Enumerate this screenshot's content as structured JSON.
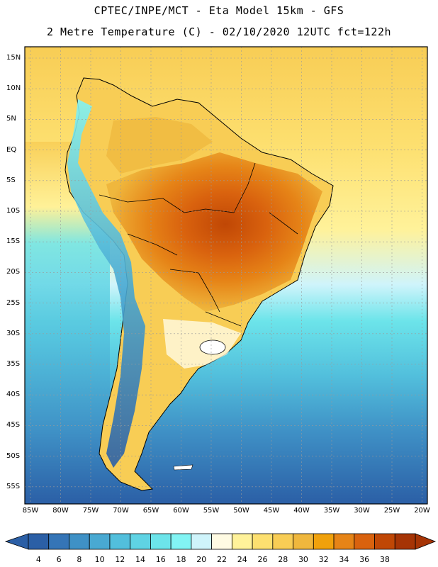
{
  "header": {
    "line1": "CPTEC/INPE/MCT -  Eta Model 15km - GFS",
    "line2": "2 Metre Temperature (C) - 02/10/2020 12UTC fct=122h"
  },
  "axes": {
    "lat_labels": [
      "15N",
      "10N",
      "5N",
      "EQ",
      "5S",
      "10S",
      "15S",
      "20S",
      "25S",
      "30S",
      "35S",
      "40S",
      "45S",
      "50S",
      "55S"
    ],
    "lon_labels": [
      "85W",
      "80W",
      "75W",
      "70W",
      "65W",
      "60W",
      "55W",
      "50W",
      "45W",
      "40W",
      "35W",
      "30W",
      "25W",
      "20W"
    ]
  },
  "colorbar": {
    "labels": [
      "4",
      "6",
      "8",
      "10",
      "12",
      "14",
      "16",
      "18",
      "20",
      "22",
      "24",
      "26",
      "28",
      "30",
      "32",
      "34",
      "36",
      "38"
    ],
    "colors": [
      "#2b5fa6",
      "#3575b7",
      "#3f91c6",
      "#49a9d2",
      "#52bfdc",
      "#5fd3e4",
      "#6ce4ea",
      "#82f4f4",
      "#cff4fb",
      "#fffbe3",
      "#fff29a",
      "#fde070",
      "#f8cd55",
      "#efb73d",
      "#f0a10c",
      "#e68417",
      "#d9620e",
      "#c04705",
      "#a63405"
    ]
  },
  "map": {
    "background_colors": {
      "north_ocean": "#fbd15a",
      "tropical_ocean": "#fde070",
      "subtropical_ocean": "#5fd3e4",
      "south_ocean": "#3f91c6",
      "far_south": "#2b5fa6"
    }
  }
}
